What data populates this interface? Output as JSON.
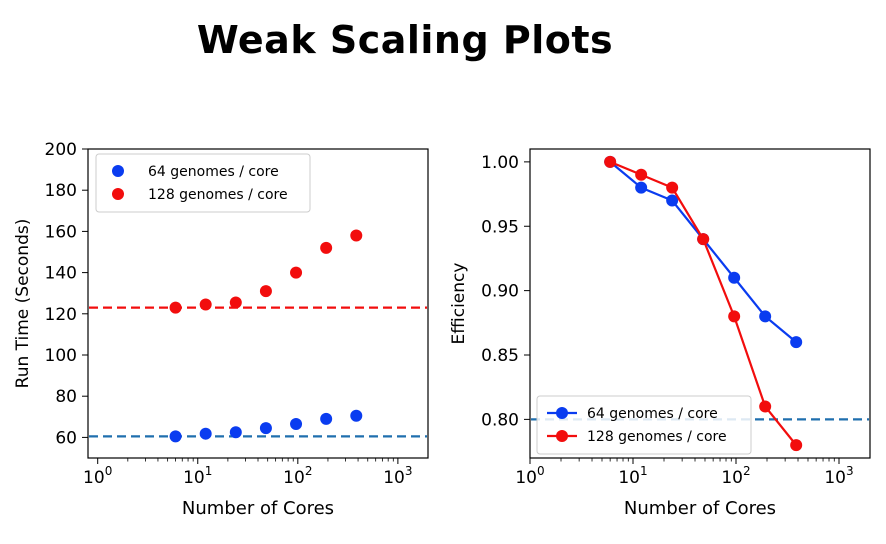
{
  "page": {
    "title": "Weak Scaling Plots"
  },
  "colors": {
    "blue": "#0a3cf0",
    "red": "#f20d0d",
    "dashed_blue": "#1f6fae",
    "dashed_red": "#f20d0d"
  },
  "chart_data": [
    {
      "type": "scatter",
      "xscale": "log",
      "xlabel": "Number of Cores",
      "ylabel": "Run Time (Seconds)",
      "xlim": [
        0.8,
        2000
      ],
      "ylim": [
        50,
        200
      ],
      "xticks": [
        {
          "value": 1,
          "label": "10",
          "exp": "0"
        },
        {
          "value": 10,
          "label": "10",
          "exp": "1"
        },
        {
          "value": 100,
          "label": "10",
          "exp": "2"
        },
        {
          "value": 1000,
          "label": "10",
          "exp": "3"
        }
      ],
      "yticks": [
        60,
        80,
        100,
        120,
        140,
        160,
        180,
        200
      ],
      "legend": "upper-left",
      "series": [
        {
          "name": "64 genomes / core",
          "color": "#0a3cf0",
          "x": [
            6,
            12,
            24,
            48,
            96,
            192,
            384
          ],
          "y": [
            60.5,
            61.8,
            62.5,
            64.5,
            66.5,
            69,
            70.5
          ]
        },
        {
          "name": "128 genomes / core",
          "color": "#f20d0d",
          "x": [
            6,
            12,
            24,
            48,
            96,
            192,
            384
          ],
          "y": [
            123,
            124.5,
            125.5,
            131,
            140,
            152,
            158
          ]
        }
      ],
      "hlines": [
        {
          "y": 60.5,
          "color": "#1f6fae"
        },
        {
          "y": 123,
          "color": "#f20d0d"
        }
      ]
    },
    {
      "type": "line",
      "xscale": "log",
      "xlabel": "Number of Cores",
      "ylabel": "Efficiency",
      "xlim": [
        1,
        2000
      ],
      "ylim": [
        0.77,
        1.01
      ],
      "xticks": [
        {
          "value": 1,
          "label": "10",
          "exp": "0"
        },
        {
          "value": 10,
          "label": "10",
          "exp": "1"
        },
        {
          "value": 100,
          "label": "10",
          "exp": "2"
        },
        {
          "value": 1000,
          "label": "10",
          "exp": "3"
        }
      ],
      "yticks": [
        "0.80",
        "0.85",
        "0.90",
        "0.95",
        "1.00"
      ],
      "legend": "lower-left",
      "series": [
        {
          "name": "64 genomes / core",
          "color": "#0a3cf0",
          "x": [
            6,
            12,
            24,
            48,
            96,
            192,
            384
          ],
          "y": [
            1.0,
            0.98,
            0.97,
            0.94,
            0.91,
            0.88,
            0.86
          ]
        },
        {
          "name": "128 genomes / core",
          "color": "#f20d0d",
          "x": [
            6,
            12,
            24,
            48,
            96,
            192,
            384
          ],
          "y": [
            1.0,
            0.99,
            0.98,
            0.94,
            0.88,
            0.81,
            0.78
          ]
        }
      ],
      "hlines": [
        {
          "y": 0.8,
          "color": "#1f6fae"
        }
      ]
    }
  ]
}
